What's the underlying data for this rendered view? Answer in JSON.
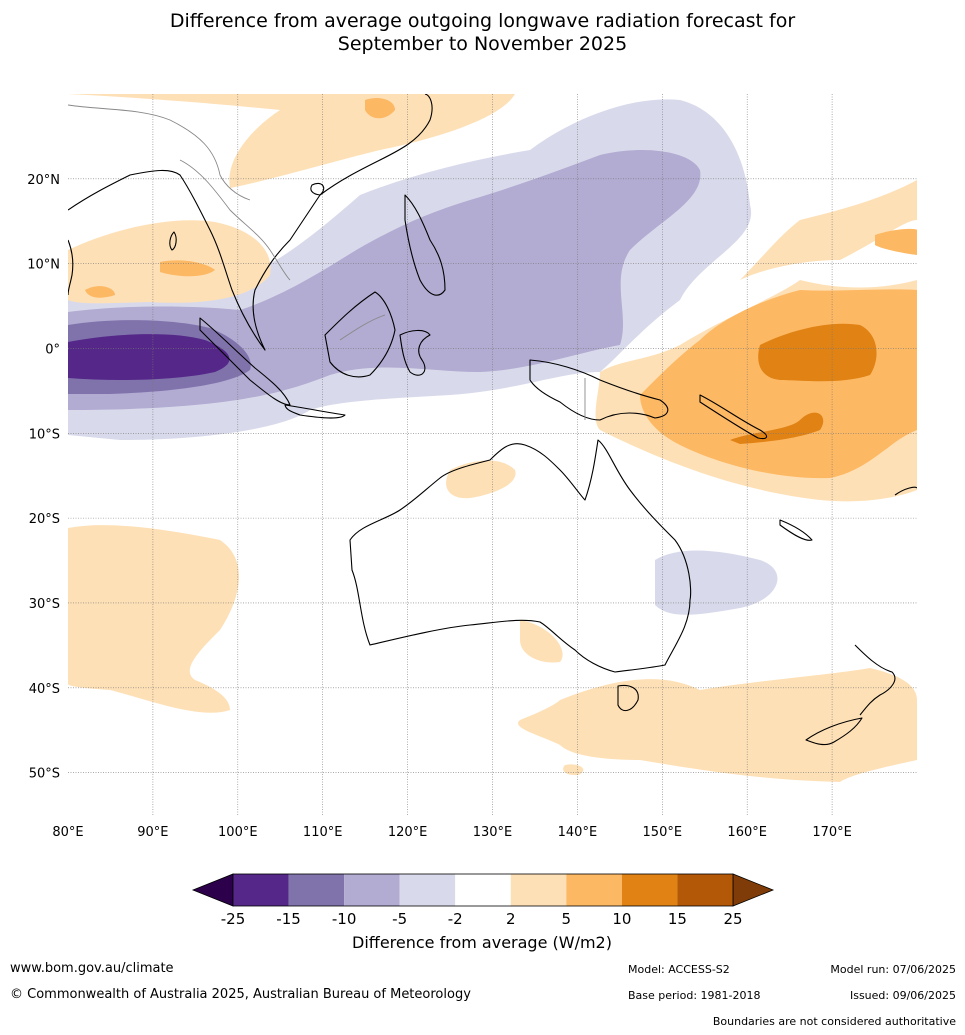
{
  "title": {
    "line1": "Difference from average outgoing longwave radiation forecast for",
    "line2": "September to November 2025"
  },
  "map": {
    "lon_range": [
      80,
      180
    ],
    "lat_range": [
      -55,
      30
    ],
    "lon_ticks": [
      {
        "value": 80,
        "label": "80°E"
      },
      {
        "value": 90,
        "label": "90°E"
      },
      {
        "value": 100,
        "label": "100°E"
      },
      {
        "value": 110,
        "label": "110°E"
      },
      {
        "value": 120,
        "label": "120°E"
      },
      {
        "value": 130,
        "label": "130°E"
      },
      {
        "value": 140,
        "label": "140°E"
      },
      {
        "value": 150,
        "label": "150°E"
      },
      {
        "value": 160,
        "label": "160°E"
      },
      {
        "value": 170,
        "label": "170°E"
      }
    ],
    "lat_ticks": [
      {
        "value": 20,
        "label": "20°N"
      },
      {
        "value": 10,
        "label": "10°N"
      },
      {
        "value": 0,
        "label": "0°"
      },
      {
        "value": -10,
        "label": "10°S"
      },
      {
        "value": -20,
        "label": "20°S"
      },
      {
        "value": -30,
        "label": "30°S"
      },
      {
        "value": -40,
        "label": "40°S"
      },
      {
        "value": -50,
        "label": "50°S"
      }
    ],
    "grid": "dotted"
  },
  "colorbar": {
    "label": "Difference from average (W/m2)",
    "under_color": "#2d004b",
    "over_color": "#7f3b08",
    "ticks": [
      "-25",
      "-15",
      "-10",
      "-5",
      "-2",
      "2",
      "5",
      "10",
      "15",
      "25"
    ],
    "colors": [
      "#542788",
      "#8073ac",
      "#b2abd2",
      "#d8daeb",
      "#ffffff",
      "#fee0b6",
      "#fdb863",
      "#e08214",
      "#b35806"
    ]
  },
  "footer": {
    "website": "www.bom.gov.au/climate",
    "copyright": "© Commonwealth of Australia 2025, Australian Bureau of Meteorology",
    "model": "Model: ACCESS-S2",
    "base_period": "Base period: 1981-2018",
    "model_run": "Model run: 07/06/2025",
    "issued": "Issued: 09/06/2025",
    "disclaimer": "Boundaries are not considered authoritative"
  }
}
